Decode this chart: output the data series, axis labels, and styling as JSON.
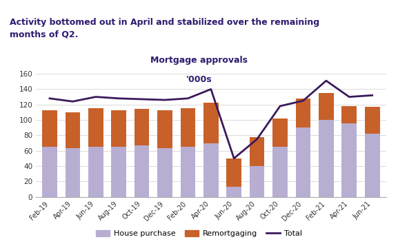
{
  "categories": [
    "Feb-19",
    "Apr-19",
    "Jun-19",
    "Aug-19",
    "Oct-19",
    "Dec-19",
    "Feb-20",
    "Apr-20",
    "Jun-20",
    "Aug-20",
    "Oct-20",
    "Dec-20",
    "Feb-21",
    "Apr-21",
    "Jun-21"
  ],
  "house_purchase": [
    65,
    63,
    65,
    65,
    67,
    63,
    65,
    70,
    13,
    40,
    65,
    90,
    100,
    96,
    82
  ],
  "remortgaging": [
    48,
    47,
    50,
    48,
    47,
    50,
    50,
    52,
    37,
    38,
    37,
    38,
    35,
    22,
    35
  ],
  "total": [
    128,
    124,
    130,
    128,
    127,
    126,
    128,
    140,
    50,
    75,
    118,
    125,
    151,
    130,
    132
  ],
  "title_line1": "Mortgage approvals",
  "title_line2": "'000s",
  "header_text": "Activity bottomed out in April and stabilized over the remaining\nmonths of Q2.",
  "header_bg": "#d9b8e8",
  "bar_color_hp": "#b8aed2",
  "bar_color_rm": "#c8602a",
  "line_color": "#3b1a5a",
  "ylim": [
    0,
    160
  ],
  "yticks": [
    0,
    20,
    40,
    60,
    80,
    100,
    120,
    140,
    160
  ]
}
